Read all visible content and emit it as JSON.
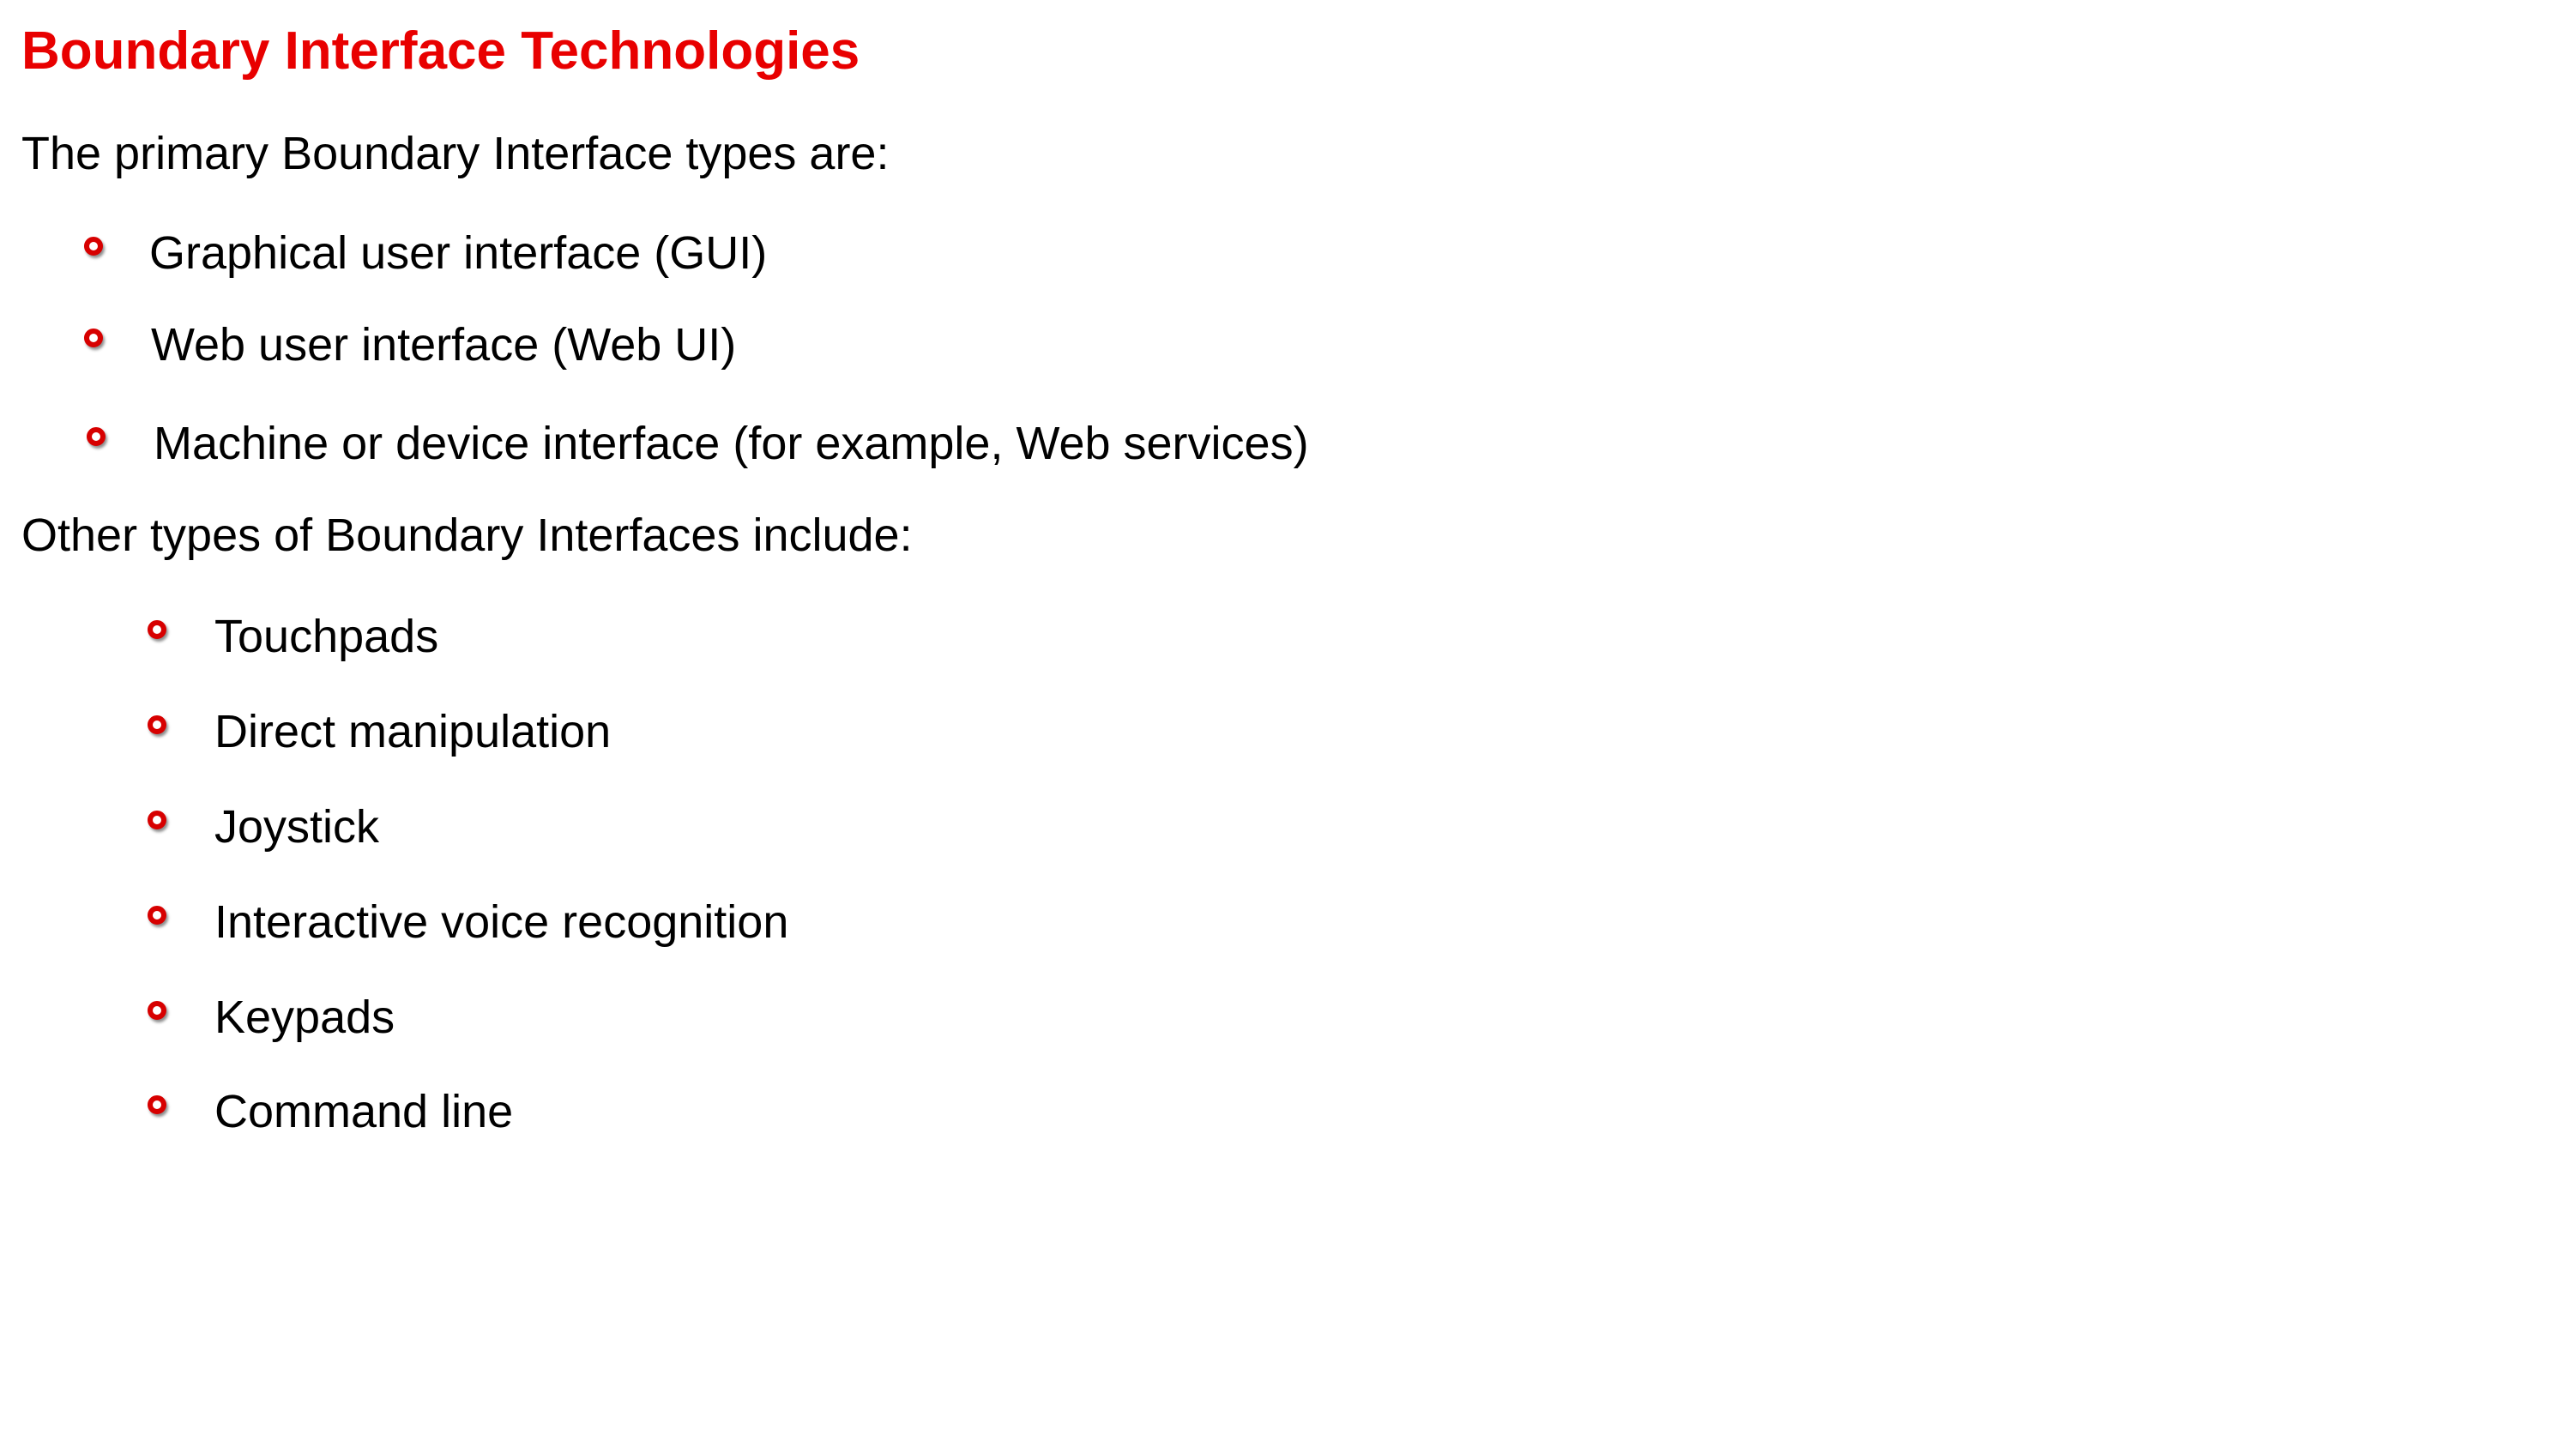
{
  "title": "Boundary Interface Technologies",
  "title_color": "#e80000",
  "bullet_color": "#d70000",
  "intro_primary": "The primary Boundary Interface types are:",
  "primary_items": [
    "Graphical user interface (GUI)",
    "Web user interface (Web UI)",
    "Machine or device interface (for example, Web services)"
  ],
  "intro_other": "Other types of Boundary Interfaces include:",
  "other_items": [
    "Touchpads",
    "Direct manipulation",
    "Joystick",
    "Interactive voice recognition",
    "Keypads",
    "Command line"
  ],
  "bullet_icon": "hollow-circle-bullet-icon"
}
